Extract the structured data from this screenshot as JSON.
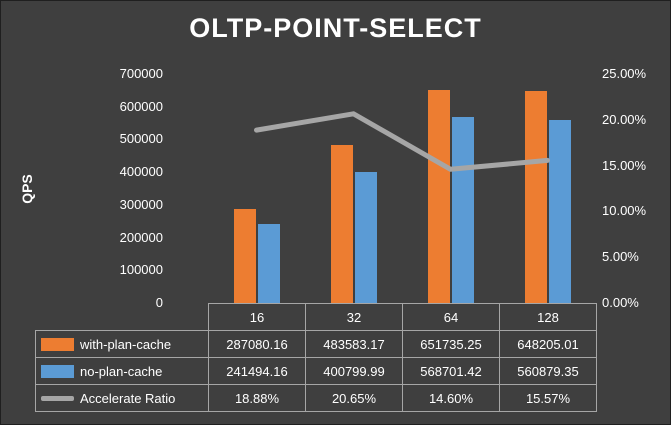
{
  "background_color": "#3F3F3F",
  "chart_data": {
    "type": "bar",
    "title": "OLTP-POINT-SELECT",
    "ylabel_left": "QPS",
    "categories": [
      "16",
      "32",
      "64",
      "128"
    ],
    "series": [
      {
        "name": "with-plan-cache",
        "color": "#ED7D31",
        "axis": "left",
        "values": [
          287080.16,
          483583.17,
          651735.25,
          648205.01
        ]
      },
      {
        "name": "no-plan-cache",
        "color": "#5B9BD5",
        "axis": "left",
        "values": [
          241494.16,
          400799.99,
          568701.42,
          560879.35
        ]
      }
    ],
    "line_series": {
      "name": "Accelerate Ratio",
      "color": "#A6A6A6",
      "axis": "right",
      "values": [
        18.88,
        20.65,
        14.6,
        15.57
      ]
    },
    "left_axis": {
      "min": 0,
      "max": 700000,
      "step": 100000,
      "tick_labels": [
        "0",
        "100000",
        "200000",
        "300000",
        "400000",
        "500000",
        "600000",
        "700000"
      ]
    },
    "right_axis": {
      "min": 0,
      "max": 25,
      "step": 5,
      "tick_labels": [
        "0.00%",
        "5.00%",
        "10.00%",
        "15.00%",
        "20.00%",
        "25.00%"
      ]
    },
    "legend_position": "table-left",
    "grid": false,
    "table": {
      "rows": [
        {
          "label": "with-plan-cache",
          "swatch": "bar",
          "color": "#ED7D31",
          "cells": [
            "287080.16",
            "483583.17",
            "651735.25",
            "648205.01"
          ]
        },
        {
          "label": "no-plan-cache",
          "swatch": "bar",
          "color": "#5B9BD5",
          "cells": [
            "241494.16",
            "400799.99",
            "568701.42",
            "560879.35"
          ]
        },
        {
          "label": "Accelerate Ratio",
          "swatch": "line",
          "color": "#A6A6A6",
          "cells": [
            "18.88%",
            "20.65%",
            "14.60%",
            "15.57%"
          ]
        }
      ]
    }
  }
}
